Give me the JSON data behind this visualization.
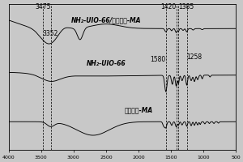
{
  "background_color": "#e8e8e8",
  "plot_bg": "#d4d4d4",
  "xmin": 4000,
  "xmax": 500,
  "dashed_lines": [
    3475,
    3352,
    1580,
    1420,
    1385,
    1258
  ],
  "curve_labels": [
    "NH₂-UIO-66/偶氮氨腔-MA",
    "NH₂-UIO-66",
    "偶氮氨腔-MA"
  ],
  "line_color": "#000000",
  "tick_label_size": 4.5,
  "annotation_fontsize": 5.5,
  "curve_label_fontsize": 5.5
}
